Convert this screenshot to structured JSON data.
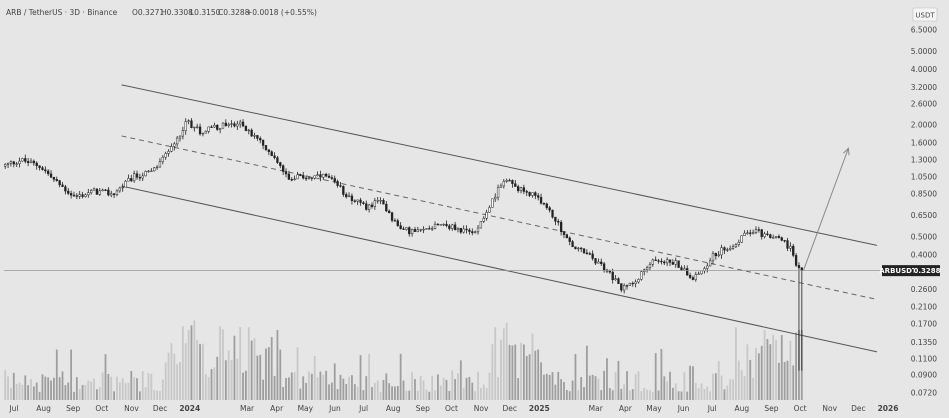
{
  "header": {
    "symbol": "ARB / TetherUS · 3D · Binance",
    "open": "O0.3271",
    "high": "H0.3308",
    "low": "L0.3150",
    "close": "C0.3288",
    "change": "+0.0018 (+0.55%)"
  },
  "currency_badge": "USDT",
  "price_badge": {
    "symbol": "ARBUSDT",
    "value": "0.3288"
  },
  "chart_data": {
    "type": "candlestick",
    "title": "",
    "y_scale": "log",
    "y_ticks": [
      "6.5000",
      "5.0000",
      "4.0000",
      "3.2000",
      "2.6000",
      "2.0000",
      "1.6000",
      "1.3000",
      "1.0500",
      "0.8500",
      "0.6500",
      "0.5000",
      "0.4000",
      "0.2600",
      "0.2100",
      "0.1700",
      "0.1350",
      "0.1100",
      "0.0900",
      "0.0720"
    ],
    "x_ticks": [
      "Jul",
      "Aug",
      "Sep",
      "Oct",
      "Nov",
      "Dec",
      "2024",
      "Mar",
      "Apr",
      "May",
      "Jun",
      "Jul",
      "Aug",
      "Sep",
      "Oct",
      "Nov",
      "Dec",
      "2025",
      "Mar",
      "Apr",
      "May",
      "Jun",
      "Jul",
      "Aug",
      "Sep",
      "Oct",
      "Nov",
      "Dec",
      "2026"
    ],
    "bold_x_ticks": [
      "2024",
      "2025",
      "2026"
    ],
    "x_range": [
      "2023-07-01",
      "2026-01-01"
    ],
    "y_range": [
      0.066,
      7.2
    ],
    "last_price": 0.3288,
    "price_keypoints": [
      [
        "2023-07-01",
        1.2
      ],
      [
        "2023-07-20",
        1.3
      ],
      [
        "2023-08-10",
        1.2
      ],
      [
        "2023-08-25",
        1.0
      ],
      [
        "2023-09-15",
        0.82
      ],
      [
        "2023-10-05",
        0.88
      ],
      [
        "2023-10-25",
        0.85
      ],
      [
        "2023-11-15",
        1.05
      ],
      [
        "2023-12-05",
        1.12
      ],
      [
        "2023-12-25",
        1.5
      ],
      [
        "2024-01-10",
        2.1
      ],
      [
        "2024-01-25",
        1.85
      ],
      [
        "2024-02-15",
        2.0
      ],
      [
        "2024-03-05",
        2.05
      ],
      [
        "2024-03-20",
        1.75
      ],
      [
        "2024-04-10",
        1.35
      ],
      [
        "2024-04-25",
        1.05
      ],
      [
        "2024-05-15",
        1.05
      ],
      [
        "2024-06-05",
        1.05
      ],
      [
        "2024-06-25",
        0.85
      ],
      [
        "2024-07-15",
        0.72
      ],
      [
        "2024-08-01",
        0.78
      ],
      [
        "2024-08-20",
        0.55
      ],
      [
        "2024-09-10",
        0.53
      ],
      [
        "2024-09-30",
        0.6
      ],
      [
        "2024-10-15",
        0.56
      ],
      [
        "2024-11-05",
        0.52
      ],
      [
        "2024-11-25",
        0.78
      ],
      [
        "2024-12-08",
        1.05
      ],
      [
        "2024-12-20",
        0.9
      ],
      [
        "2025-01-10",
        0.85
      ],
      [
        "2025-01-30",
        0.62
      ],
      [
        "2025-02-15",
        0.45
      ],
      [
        "2025-03-05",
        0.4
      ],
      [
        "2025-03-25",
        0.33
      ],
      [
        "2025-04-10",
        0.26
      ],
      [
        "2025-04-25",
        0.3
      ],
      [
        "2025-05-15",
        0.38
      ],
      [
        "2025-06-05",
        0.36
      ],
      [
        "2025-06-25",
        0.3
      ],
      [
        "2025-07-15",
        0.4
      ],
      [
        "2025-08-05",
        0.46
      ],
      [
        "2025-08-25",
        0.55
      ],
      [
        "2025-09-10",
        0.5
      ],
      [
        "2025-09-25",
        0.48
      ],
      [
        "2025-10-05",
        0.42
      ],
      [
        "2025-10-10",
        0.33
      ],
      [
        "2025-10-13",
        0.33
      ]
    ],
    "crash_wick": {
      "date": "2025-10-10",
      "low": 0.095
    },
    "channel": {
      "upper": [
        [
          "2023-11-01",
          3.3
        ],
        [
          "2025-12-31",
          0.45
        ]
      ],
      "middle": [
        [
          "2023-11-01",
          1.75
        ],
        [
          "2025-12-31",
          0.23
        ]
      ],
      "lower": [
        [
          "2023-11-01",
          0.94
        ],
        [
          "2025-12-31",
          0.12
        ]
      ]
    },
    "projection_arrow": [
      [
        "2025-10-15",
        0.33
      ],
      [
        "2025-12-01",
        1.5
      ]
    ],
    "volume_note": "relative volume bars, decorative"
  }
}
